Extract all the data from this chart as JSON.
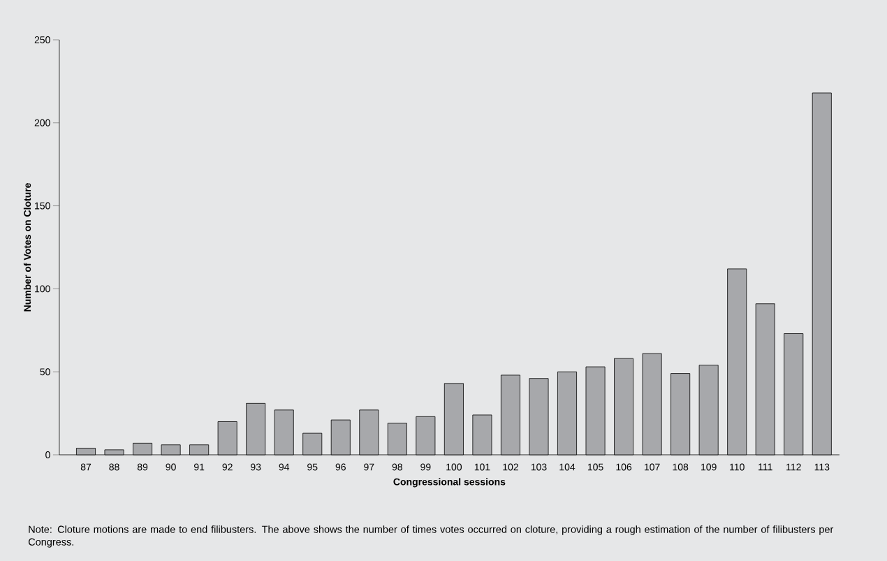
{
  "chart_data": {
    "type": "bar",
    "xlabel": "Congressional sessions",
    "ylabel": "Number of Votes on Cloture",
    "categories": [
      "87",
      "88",
      "89",
      "90",
      "91",
      "92",
      "93",
      "94",
      "95",
      "96",
      "97",
      "98",
      "99",
      "100",
      "101",
      "102",
      "103",
      "104",
      "105",
      "106",
      "107",
      "108",
      "109",
      "110",
      "111",
      "112",
      "113"
    ],
    "values": [
      4,
      3,
      7,
      6,
      6,
      20,
      31,
      27,
      13,
      21,
      27,
      19,
      23,
      43,
      24,
      48,
      46,
      50,
      53,
      58,
      61,
      49,
      54,
      112,
      91,
      73,
      218
    ],
    "color": "#a7a8ab",
    "ylim": [
      0,
      250
    ],
    "yticks": [
      0,
      50,
      100,
      150,
      200,
      250
    ],
    "annotations": [
      "Note: Cloture motions are made to end filibusters. The above shows the number of times votes occurred on cloture, providing a rough estimation of the number of filibusters per Congress."
    ]
  }
}
